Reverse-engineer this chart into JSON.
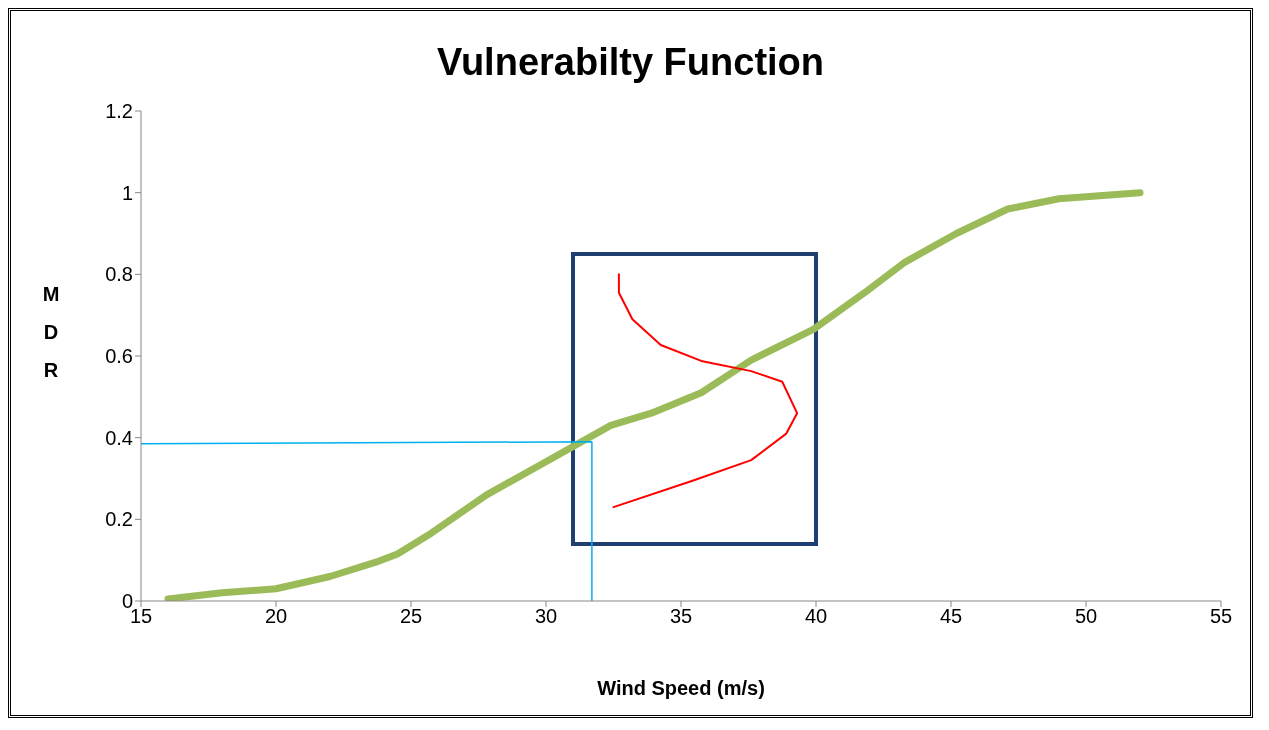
{
  "chart_data": {
    "type": "line",
    "title": "Vulnerabilty Function",
    "xlabel": "Wind Speed (m/s)",
    "ylabel": "MDR",
    "xlim": [
      15,
      55
    ],
    "xticks": [
      15,
      20,
      25,
      30,
      35,
      40,
      45,
      50,
      55
    ],
    "ylim": [
      0,
      1.2
    ],
    "yticks": [
      0,
      0.2,
      0.4,
      0.6,
      0.8,
      1,
      1.2
    ],
    "grid": false,
    "legend": false,
    "marker": "none",
    "line_style": "solid",
    "series": [
      {
        "color": "#9bbb59",
        "x": [
          16,
          18,
          20,
          22,
          23.7,
          24.5,
          25.75,
          27.8,
          29.7,
          32.4,
          33.9,
          35.75,
          37.6,
          39.9,
          41.8,
          43.3,
          45.2,
          47.1,
          49,
          52
        ],
        "values": [
          0.005,
          0.02,
          0.03,
          0.06,
          0.095,
          0.115,
          0.166,
          0.26,
          0.33,
          0.43,
          0.46,
          0.51,
          0.59,
          0.665,
          0.755,
          0.83,
          0.9,
          0.96,
          0.985,
          1
        ]
      },
      {
        "color": "#ff0000",
        "x": [
          32.7,
          32.7,
          33.2,
          34.25,
          35.75,
          37.6,
          38.75,
          39.3,
          38.9,
          37.6,
          35.4,
          32.5
        ],
        "values": [
          0.8,
          0.755,
          0.69,
          0.627,
          0.588,
          0.563,
          0.537,
          0.46,
          0.41,
          0.345,
          0.294,
          0.23
        ]
      },
      {
        "color": "#00b0f0",
        "x": [
          15,
          31.7,
          31.7
        ],
        "values": [
          0.385,
          0.39,
          0
        ]
      }
    ]
  }
}
